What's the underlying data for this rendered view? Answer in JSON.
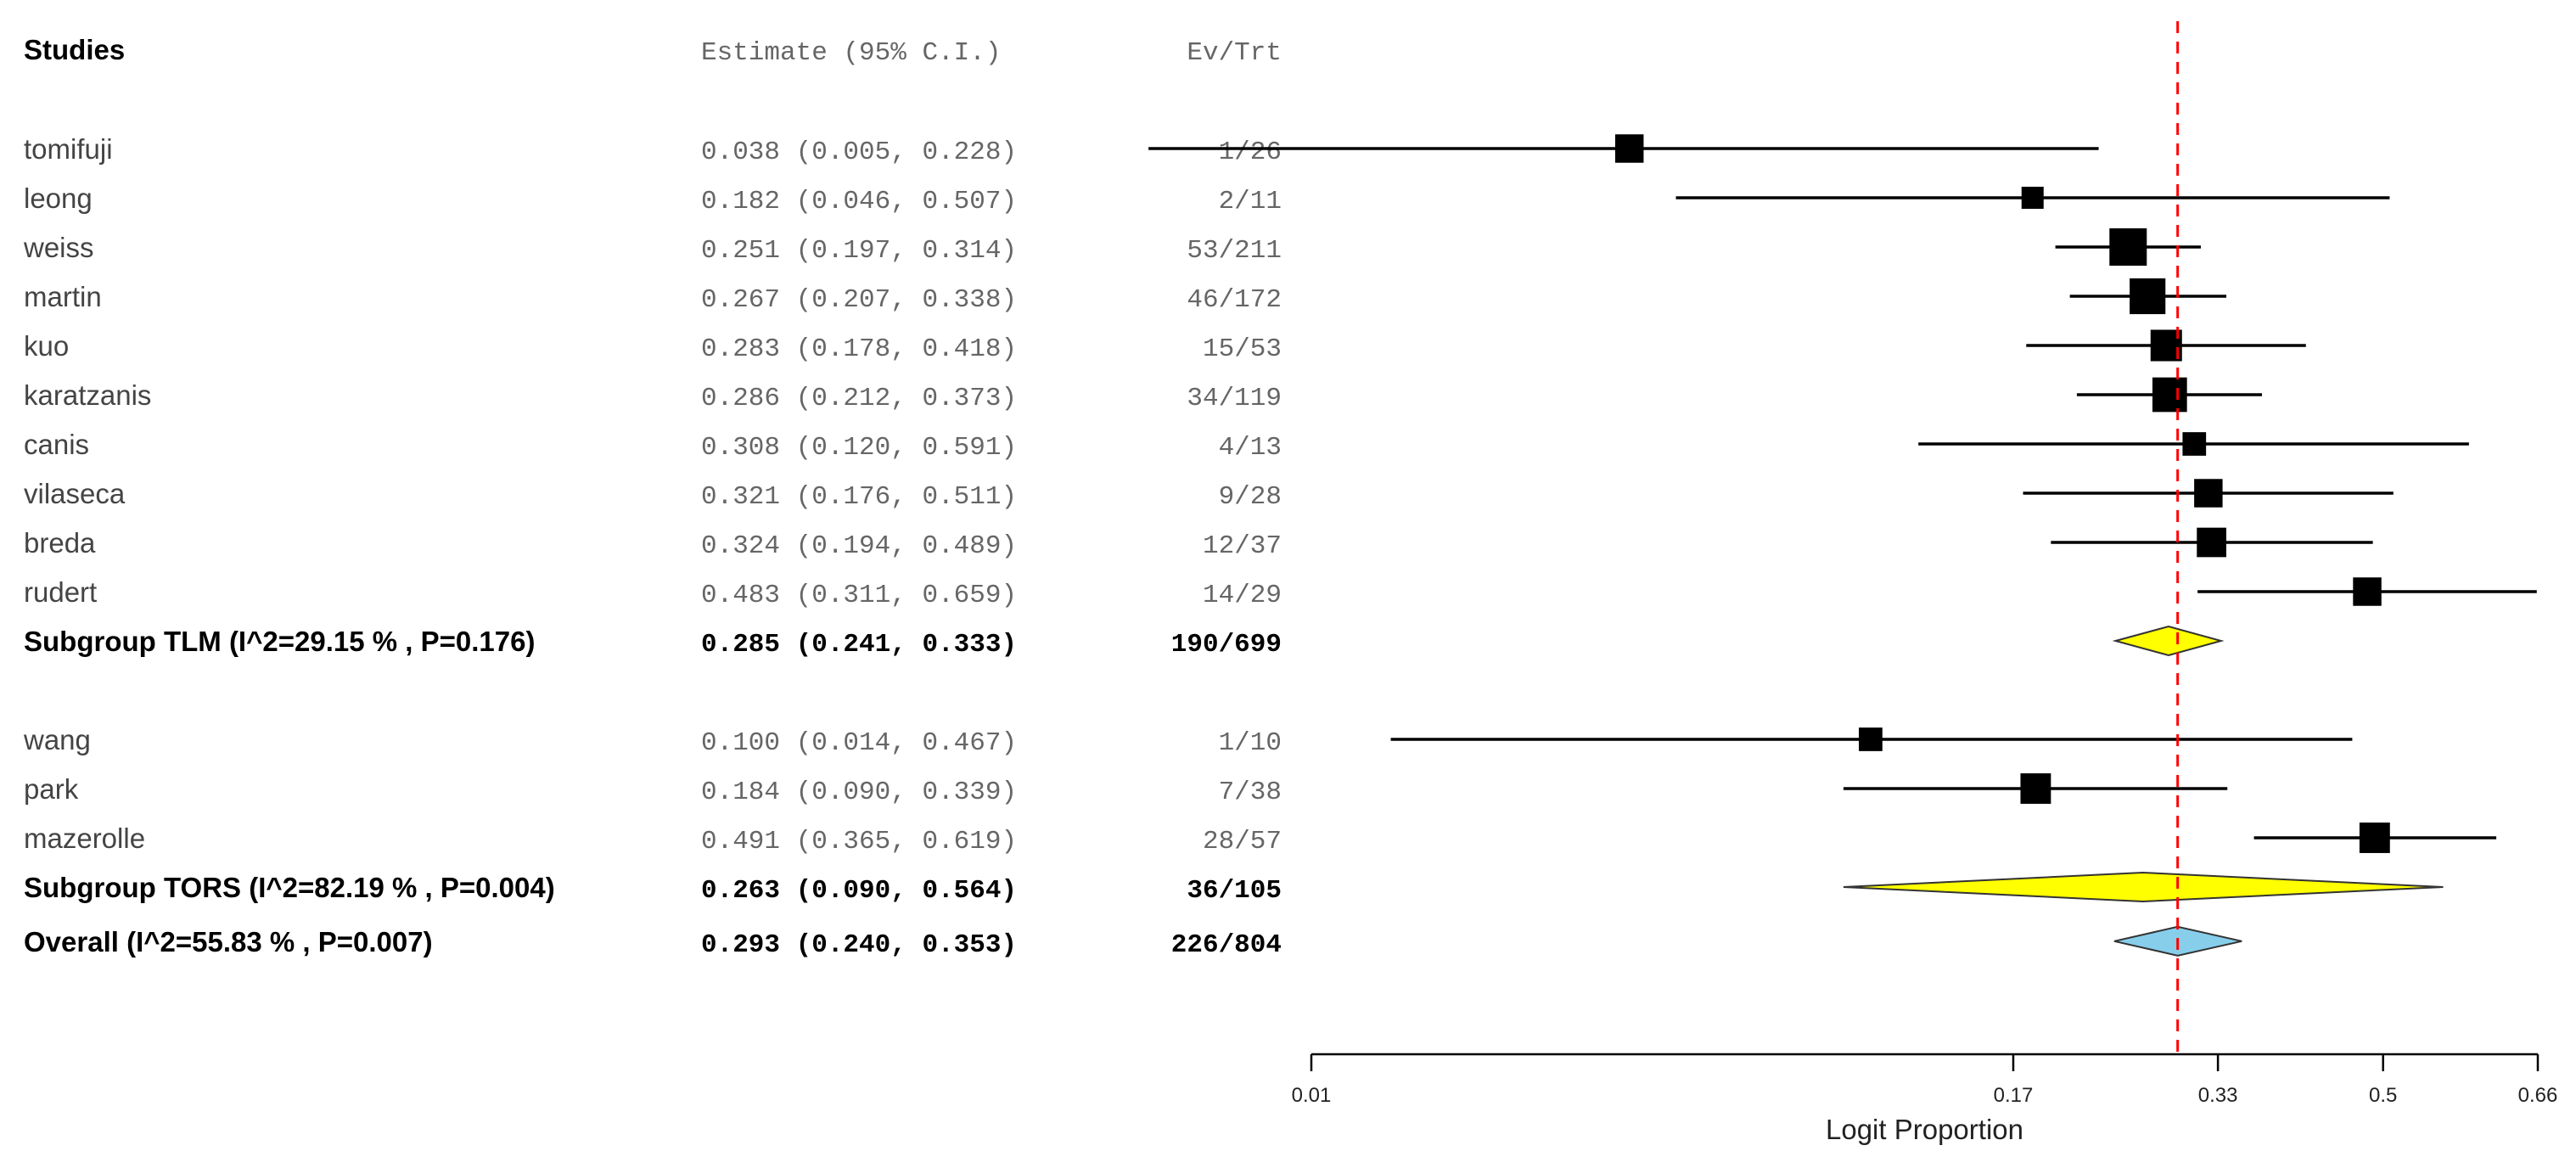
{
  "chart_data": {
    "type": "forest",
    "headers": {
      "studies": "Studies",
      "estimate": "Estimate (95% C.I.)",
      "events": "Ev/Trt"
    },
    "groups": [
      {
        "name": "TLM",
        "studies": [
          {
            "name": "tomifuji",
            "estimate": 0.038,
            "ci_low": 0.005,
            "ci_high": 0.228,
            "estimate_text": "0.038 (0.005, 0.228)",
            "events": "1/26",
            "weight": 2
          },
          {
            "name": "leong",
            "estimate": 0.182,
            "ci_low": 0.046,
            "ci_high": 0.507,
            "estimate_text": "0.182 (0.046, 0.507)",
            "events": "2/11",
            "weight": 1
          },
          {
            "name": "weiss",
            "estimate": 0.251,
            "ci_low": 0.197,
            "ci_high": 0.314,
            "estimate_text": "0.251 (0.197, 0.314)",
            "events": "53/211",
            "weight": 4
          },
          {
            "name": "martin",
            "estimate": 0.267,
            "ci_low": 0.207,
            "ci_high": 0.338,
            "estimate_text": "0.267 (0.207, 0.338)",
            "events": "46/172",
            "weight": 3.6
          },
          {
            "name": "kuo",
            "estimate": 0.283,
            "ci_low": 0.178,
            "ci_high": 0.418,
            "estimate_text": "0.283 (0.178, 0.418)",
            "events": "15/53",
            "weight": 2.6
          },
          {
            "name": "karatzanis",
            "estimate": 0.286,
            "ci_low": 0.212,
            "ci_high": 0.373,
            "estimate_text": "0.286 (0.212, 0.373)",
            "events": "34/119",
            "weight": 3.3
          },
          {
            "name": "canis",
            "estimate": 0.308,
            "ci_low": 0.12,
            "ci_high": 0.591,
            "estimate_text": "0.308 (0.120, 0.591)",
            "events": "4/13",
            "weight": 1.2
          },
          {
            "name": "vilaseca",
            "estimate": 0.321,
            "ci_low": 0.176,
            "ci_high": 0.511,
            "estimate_text": "0.321 (0.176, 0.511)",
            "events": "9/28",
            "weight": 2
          },
          {
            "name": "breda",
            "estimate": 0.324,
            "ci_low": 0.194,
            "ci_high": 0.489,
            "estimate_text": "0.324 (0.194, 0.489)",
            "events": "12/37",
            "weight": 2.2
          },
          {
            "name": "rudert",
            "estimate": 0.483,
            "ci_low": 0.311,
            "ci_high": 0.659,
            "estimate_text": "0.483 (0.311, 0.659)",
            "events": "14/29",
            "weight": 2
          }
        ],
        "summary": {
          "label": "Subgroup TLM (I^2=29.15 % , P=0.176)",
          "estimate": 0.285,
          "ci_low": 0.241,
          "ci_high": 0.333,
          "estimate_text": "0.285 (0.241, 0.333)",
          "events": "190/699",
          "color": "#ffff00"
        }
      },
      {
        "name": "TORS",
        "studies": [
          {
            "name": "wang",
            "estimate": 0.1,
            "ci_low": 0.014,
            "ci_high": 0.467,
            "estimate_text": "0.100 (0.014, 0.467)",
            "events": "1/10",
            "weight": 1.2
          },
          {
            "name": "park",
            "estimate": 0.184,
            "ci_low": 0.09,
            "ci_high": 0.339,
            "estimate_text": "0.184 (0.090, 0.339)",
            "events": "7/38",
            "weight": 2.4
          },
          {
            "name": "mazerolle",
            "estimate": 0.491,
            "ci_low": 0.365,
            "ci_high": 0.619,
            "estimate_text": "0.491 (0.365, 0.619)",
            "events": "28/57",
            "weight": 2.4
          }
        ],
        "summary": {
          "label": "Subgroup TORS (I^2=82.19 % , P=0.004)",
          "estimate": 0.263,
          "ci_low": 0.09,
          "ci_high": 0.564,
          "estimate_text": "0.263 (0.090, 0.564)",
          "events": "36/105",
          "color": "#ffff00"
        }
      }
    ],
    "overall": {
      "label": "Overall (I^2=55.83 % , P=0.007)",
      "estimate": 0.293,
      "ci_low": 0.24,
      "ci_high": 0.353,
      "estimate_text": "0.293 (0.240, 0.353)",
      "events": "226/804",
      "color": "#87ceeb"
    },
    "reference_line": {
      "value": 0.293,
      "color": "#ff0000",
      "style": "dashed"
    },
    "x_axis": {
      "title": "Logit Proportion",
      "scale": "logit",
      "range": [
        0.01,
        0.66
      ],
      "ticks": [
        0.01,
        0.17,
        0.33,
        0.5,
        0.66
      ],
      "tick_labels": [
        "0.01",
        "0.17",
        "0.33",
        "0.5",
        "0.66"
      ]
    }
  }
}
